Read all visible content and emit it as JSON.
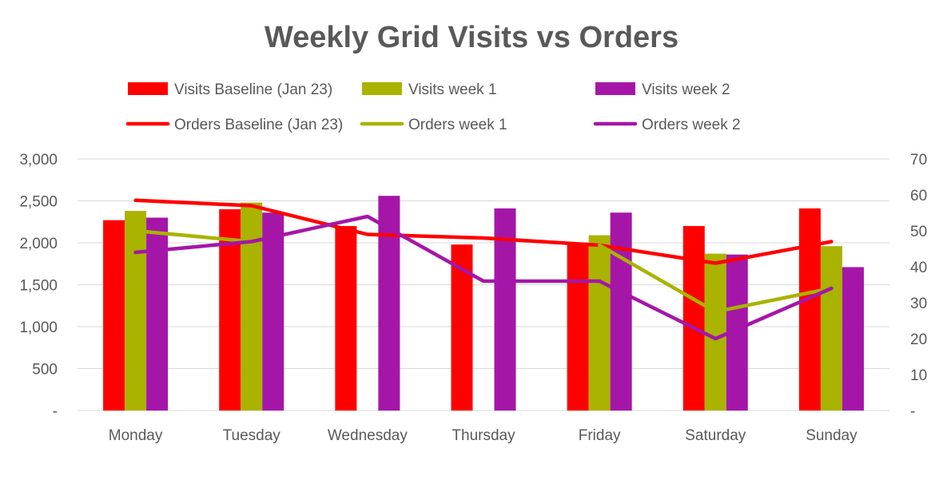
{
  "chart_data": {
    "type": "bar",
    "title": "Weekly Grid Visits vs Orders",
    "categories": [
      "Monday",
      "Tuesday",
      "Wednesday",
      "Thursday",
      "Friday",
      "Saturday",
      "Sunday"
    ],
    "left_axis": {
      "ylim": [
        0,
        3000
      ],
      "ticks": [
        0,
        500,
        1000,
        1500,
        2000,
        2500,
        3000
      ],
      "tick_labels": [
        "-",
        "500",
        "1,000",
        "1,500",
        "2,000",
        "2,500",
        "3,000"
      ]
    },
    "right_axis": {
      "ylim": [
        0,
        70
      ],
      "ticks": [
        0,
        10,
        20,
        30,
        40,
        50,
        60,
        70
      ],
      "tick_labels": [
        "-",
        "10",
        "20",
        "30",
        "40",
        "50",
        "60",
        "70"
      ]
    },
    "bar_series": [
      {
        "name": "Visits Baseline (Jan 23)",
        "color": "#ff0000",
        "values": [
          2270,
          2400,
          2200,
          1980,
          1990,
          2200,
          2410
        ]
      },
      {
        "name": "Visits week 1",
        "color": "#a9b300",
        "values": [
          2380,
          2480,
          null,
          null,
          2090,
          1870,
          1960
        ]
      },
      {
        "name": "Visits week 2",
        "color": "#a516a8",
        "values": [
          2300,
          2360,
          2560,
          2410,
          2360,
          1860,
          1710
        ]
      }
    ],
    "line_series": [
      {
        "name": "Orders Baseline (Jan 23)",
        "color": "#ff0000",
        "values": [
          58.5,
          57,
          49,
          48,
          46,
          41,
          47
        ]
      },
      {
        "name": "Orders week 1",
        "color": "#a9b300",
        "values": [
          50,
          47,
          null,
          null,
          46,
          27.5,
          34
        ]
      },
      {
        "name": "Orders week 2",
        "color": "#a516a8",
        "values": [
          44,
          47,
          54,
          36,
          36,
          20,
          34
        ]
      }
    ],
    "legend": {
      "placement": "top",
      "entries": [
        {
          "label": "Visits Baseline (Jan 23)",
          "kind": "bar",
          "color": "#ff0000"
        },
        {
          "label": "Visits week 1",
          "kind": "bar",
          "color": "#a9b300"
        },
        {
          "label": "Visits week 2",
          "kind": "bar",
          "color": "#a516a8"
        },
        {
          "label": "Orders Baseline (Jan 23)",
          "kind": "line",
          "color": "#ff0000"
        },
        {
          "label": "Orders week 1",
          "kind": "line",
          "color": "#a9b300"
        },
        {
          "label": "Orders week 2",
          "kind": "line",
          "color": "#a516a8"
        }
      ]
    },
    "grid": true,
    "gridline_color": "#d9d9d9",
    "text_color": "#595959"
  }
}
